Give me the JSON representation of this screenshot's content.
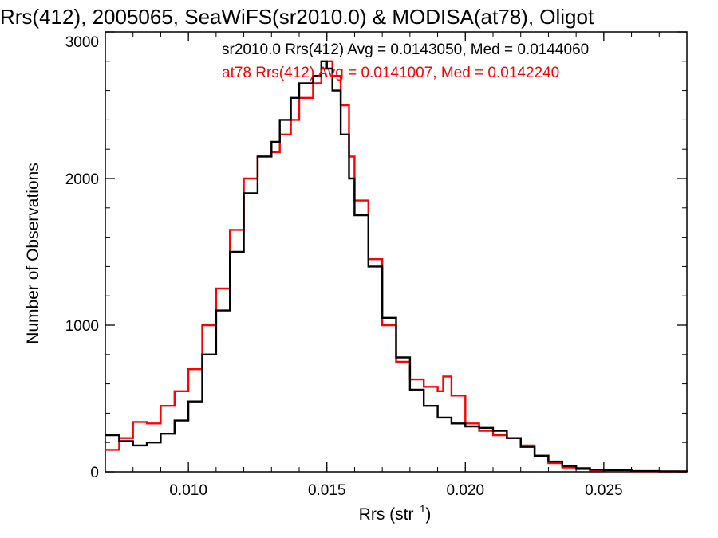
{
  "chart_data": {
    "type": "line",
    "title": "Rrs(412), 2005065, SeaWiFS(sr2010.0) & MODISA(at78), Oligot",
    "xlabel": "Rrs (str",
    "xlabel_sup": "−1",
    "xlabel_close": ")",
    "ylabel": "Number of Observations",
    "xlim": [
      0.007,
      0.028
    ],
    "ylim": [
      0,
      3000
    ],
    "xticks": [
      0.01,
      0.015,
      0.02,
      0.025
    ],
    "xtick_labels": [
      "0.010",
      "0.015",
      "0.020",
      "0.025"
    ],
    "yticks": [
      0,
      1000,
      2000,
      3000
    ],
    "ytick_labels": [
      "0",
      "1000",
      "2000",
      "3000"
    ],
    "grid": false,
    "legend_position": "top-right",
    "series": [
      {
        "name": "sr2010.0",
        "color": "#000000",
        "legend": "sr2010.0 Rrs(412) Avg = 0.0143050, Med = 0.0144060",
        "x": [
          0.007,
          0.0075,
          0.008,
          0.0085,
          0.009,
          0.0095,
          0.01,
          0.0105,
          0.011,
          0.0115,
          0.012,
          0.0125,
          0.013,
          0.0133,
          0.0137,
          0.014,
          0.0145,
          0.0148,
          0.015,
          0.0152,
          0.0155,
          0.0158,
          0.016,
          0.0165,
          0.017,
          0.0175,
          0.018,
          0.0185,
          0.019,
          0.0195,
          0.02,
          0.0205,
          0.021,
          0.0215,
          0.022,
          0.0225,
          0.023,
          0.0235,
          0.024,
          0.0245,
          0.025,
          0.026,
          0.027,
          0.028
        ],
        "y": [
          250,
          210,
          180,
          200,
          260,
          350,
          480,
          800,
          1100,
          1500,
          1900,
          2150,
          2250,
          2400,
          2550,
          2650,
          2700,
          2800,
          2750,
          2600,
          2300,
          2000,
          1750,
          1400,
          1050,
          780,
          560,
          450,
          370,
          330,
          310,
          300,
          280,
          230,
          170,
          110,
          70,
          40,
          25,
          15,
          10,
          5,
          3,
          0
        ]
      },
      {
        "name": "at78",
        "color": "#ff0000",
        "legend": "at78 Rrs(412) Avg = 0.0141007, Med = 0.0142240",
        "x": [
          0.007,
          0.0075,
          0.008,
          0.0085,
          0.009,
          0.0095,
          0.01,
          0.0105,
          0.011,
          0.0115,
          0.012,
          0.0125,
          0.013,
          0.0133,
          0.0137,
          0.014,
          0.0145,
          0.0148,
          0.015,
          0.0152,
          0.0155,
          0.0158,
          0.016,
          0.0165,
          0.017,
          0.0175,
          0.018,
          0.0185,
          0.019,
          0.0192,
          0.0195,
          0.02,
          0.0205,
          0.021,
          0.0215,
          0.022,
          0.0225,
          0.023,
          0.0235,
          0.024,
          0.0245,
          0.025,
          0.026,
          0.027,
          0.028
        ],
        "y": [
          150,
          230,
          340,
          330,
          450,
          550,
          700,
          1000,
          1250,
          1650,
          2000,
          2150,
          2180,
          2300,
          2400,
          2550,
          2650,
          2750,
          2800,
          2700,
          2500,
          2150,
          1850,
          1450,
          1000,
          750,
          630,
          580,
          550,
          650,
          520,
          330,
          280,
          250,
          230,
          180,
          110,
          60,
          30,
          18,
          10,
          6,
          3,
          2,
          0
        ]
      }
    ]
  }
}
